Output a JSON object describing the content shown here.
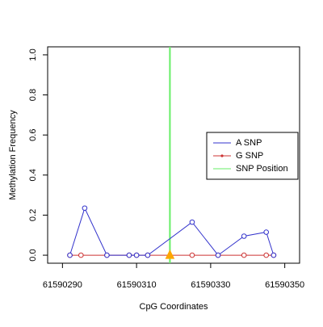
{
  "chart_data": {
    "type": "line",
    "xlabel": "CpG Coordinates",
    "ylabel": "Methylation Frequency",
    "xlim": [
      61590286,
      61590354
    ],
    "ylim": [
      -0.04,
      1.04
    ],
    "x_ticks": [
      61590290,
      61590310,
      61590330,
      61590350
    ],
    "x_tick_labels": [
      "61590290",
      "61590310",
      "61590330",
      "61590350"
    ],
    "y_ticks": [
      0.0,
      0.2,
      0.4,
      0.6,
      0.8,
      1.0
    ],
    "y_tick_labels": [
      "0.0",
      "0.2",
      "0.4",
      "0.6",
      "0.8",
      "1.0"
    ],
    "series": [
      {
        "name": "A SNP",
        "color": "#3333cc",
        "x": [
          61590292,
          61590296,
          61590302,
          61590308,
          61590310,
          61590313,
          61590325,
          61590332,
          61590339,
          61590345,
          61590347
        ],
        "y": [
          0.0,
          0.235,
          0.0,
          0.0,
          0.0,
          0.0,
          0.165,
          0.0,
          0.095,
          0.115,
          0.0
        ]
      },
      {
        "name": "G SNP",
        "color": "#cc3333",
        "x": [
          61590292,
          61590295,
          61590302,
          61590308,
          61590310,
          61590313,
          61590319,
          61590325,
          61590332,
          61590339,
          61590345,
          61590347
        ],
        "y": [
          0.0,
          0.0,
          0.0,
          0.0,
          0.0,
          0.0,
          0.0,
          0.0,
          0.0,
          0.0,
          0.0,
          0.0
        ]
      }
    ],
    "snp_position": {
      "name": "SNP Position",
      "x": 61590319,
      "color": "#66ee66",
      "marker_color": "#ffa500"
    },
    "legend": {
      "placement": "right",
      "entries": [
        "A SNP",
        "G SNP",
        "SNP Position"
      ]
    },
    "grid": false
  }
}
